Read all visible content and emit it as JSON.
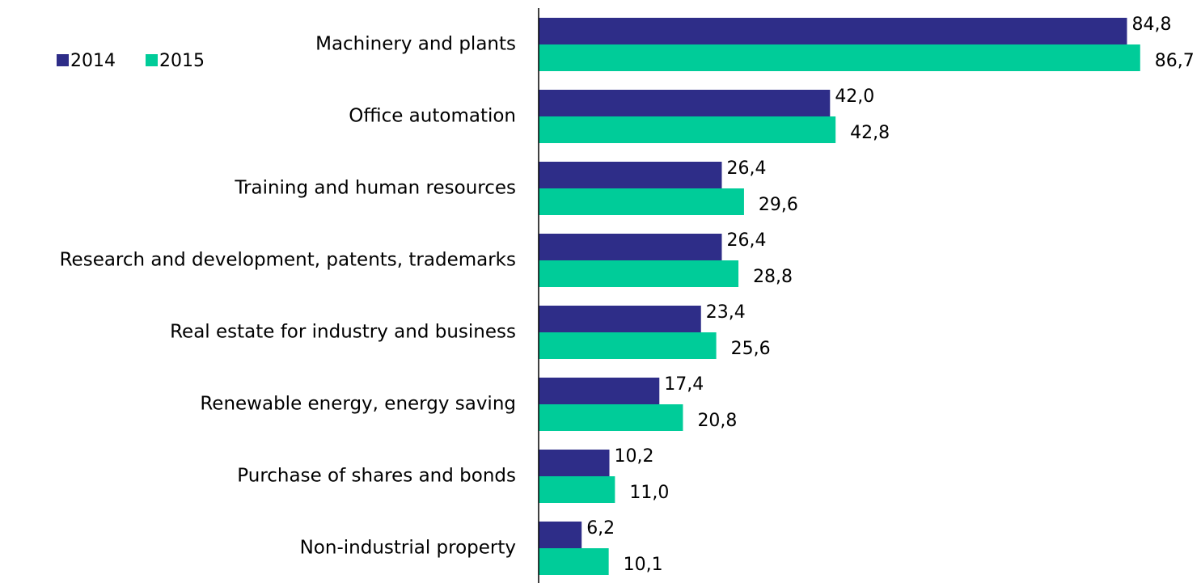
{
  "chart_data": {
    "type": "hbar",
    "categories": [
      "Machinery and plants",
      "Office automation",
      "Training and human resources",
      "Research and development, patents, trademarks",
      "Real estate for industry and business",
      "Renewable energy, energy saving",
      "Purchase of shares and bonds",
      "Non-industrial property"
    ],
    "series": [
      {
        "name": "2014",
        "color": "#2e2d88",
        "values": [
          84.8,
          42.0,
          26.4,
          26.4,
          23.4,
          17.4,
          10.2,
          6.2
        ],
        "value_labels": [
          "84,8",
          "42,0",
          "26,4",
          "26,4",
          "23,4",
          "17,4",
          "10,2",
          "6,2"
        ]
      },
      {
        "name": "2015",
        "color": "#00cc99",
        "values": [
          86.7,
          42.8,
          29.6,
          28.8,
          25.6,
          20.8,
          11.0,
          10.1
        ],
        "value_labels": [
          "86,7",
          "42,8",
          "29,6",
          "28,8",
          "25,6",
          "20,8",
          "11,0",
          "10,1"
        ]
      }
    ],
    "xlim": [
      0,
      95
    ],
    "legend": "top-left"
  }
}
